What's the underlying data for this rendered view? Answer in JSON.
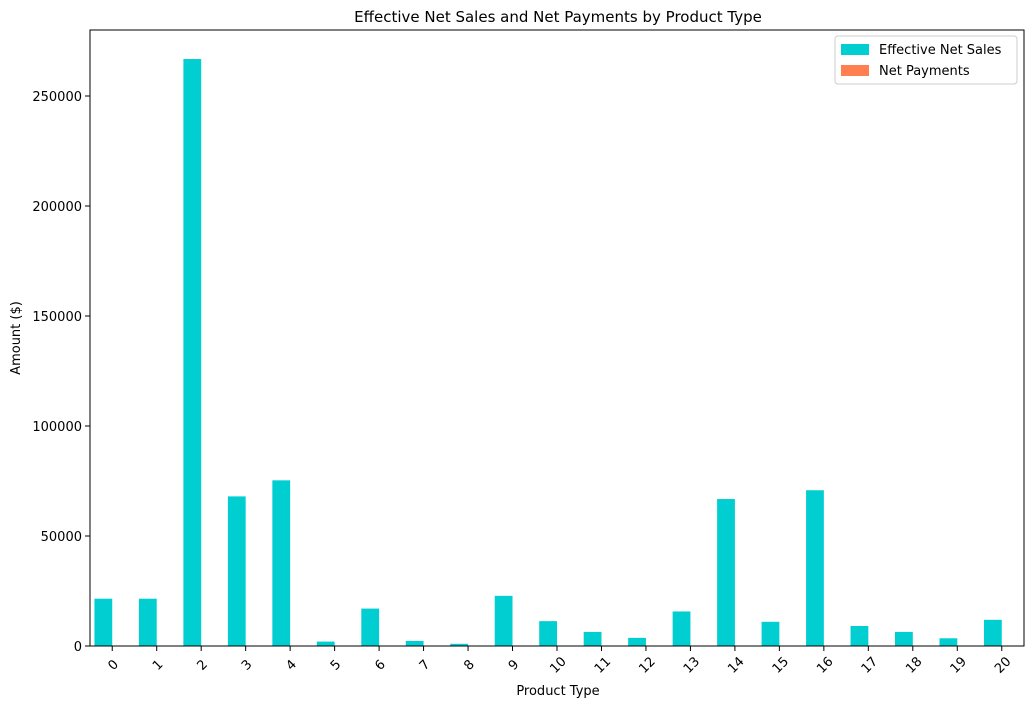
{
  "chart_data": {
    "type": "bar",
    "title": "Effective Net Sales and Net Payments by Product Type",
    "xlabel": "Product Type",
    "ylabel": "Amount ($)",
    "categories": [
      "0",
      "1",
      "2",
      "3",
      "4",
      "5",
      "6",
      "7",
      "8",
      "9",
      "10",
      "11",
      "12",
      "13",
      "14",
      "15",
      "16",
      "17",
      "18",
      "19",
      "20"
    ],
    "series": [
      {
        "name": "Effective Net Sales",
        "color": "#00CED1",
        "values": [
          21500,
          21500,
          266800,
          68000,
          75300,
          2000,
          17000,
          2300,
          1000,
          22800,
          11300,
          6400,
          3700,
          15700,
          66800,
          11000,
          70800,
          9100,
          6400,
          3500,
          11900
        ]
      },
      {
        "name": "Net Payments",
        "color": "#FF7F50",
        "values": [
          0,
          0,
          0,
          0,
          0,
          0,
          0,
          0,
          0,
          0,
          0,
          0,
          0,
          0,
          0,
          0,
          0,
          0,
          0,
          0,
          0
        ]
      }
    ],
    "ylim": [
      0,
      280000
    ],
    "yticks": [
      0,
      50000,
      100000,
      150000,
      200000,
      250000
    ],
    "ytick_labels": [
      "0",
      "50000",
      "100000",
      "150000",
      "200000",
      "250000"
    ],
    "xtick_rotation_deg": 45,
    "grid": false,
    "legend_position": "top-right"
  }
}
